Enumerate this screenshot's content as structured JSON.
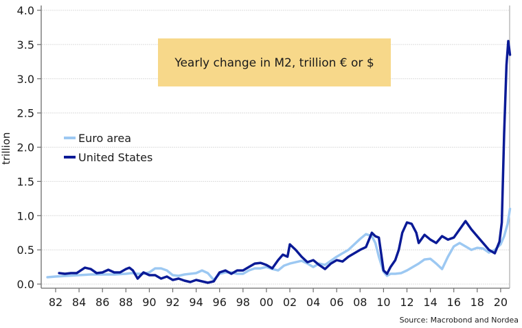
{
  "chart_data": {
    "type": "line",
    "title": "Yearly change in M2, trillion € or $",
    "xlabel": "",
    "ylabel": "trillion",
    "source": "Source: Macrobond and Nordea",
    "xlim": [
      1981.3,
      2020.9
    ],
    "ylim": [
      0,
      4.0
    ],
    "yticks": [
      0.0,
      0.5,
      1.0,
      1.5,
      2.0,
      2.5,
      3.0,
      3.5,
      4.0
    ],
    "ytick_labels": [
      "0.0",
      "0.5",
      "1.0",
      "1.5",
      "2.0",
      "2.5",
      "3.0",
      "3.5",
      "4.0"
    ],
    "xticks": [
      1982,
      1984,
      1986,
      1988,
      1990,
      1992,
      1994,
      1996,
      1998,
      2000,
      2002,
      2004,
      2006,
      2008,
      2010,
      2012,
      2014,
      2016,
      2018,
      2020
    ],
    "xtick_labels": [
      "82",
      "84",
      "86",
      "88",
      "90",
      "92",
      "94",
      "96",
      "98",
      "00",
      "02",
      "04",
      "06",
      "08",
      "10",
      "12",
      "14",
      "16",
      "18",
      "20"
    ],
    "grid": true,
    "legend": "middle-left",
    "series": [
      {
        "name": "Euro area",
        "color": "#9CC8F2",
        "x": [
          1981.3,
          1982,
          1983,
          1984,
          1985,
          1986,
          1987,
          1988,
          1988.5,
          1989,
          1989.5,
          1990,
          1990.5,
          1991,
          1991.5,
          1992,
          1992.5,
          1993,
          1993.5,
          1994,
          1994.5,
          1995,
          1995.5,
          1996,
          1996.5,
          1997,
          1997.5,
          1998,
          1998.5,
          1999,
          1999.5,
          2000,
          2000.5,
          2001,
          2001.5,
          2002,
          2002.5,
          2003,
          2003.5,
          2004,
          2004.5,
          2005,
          2005.5,
          2006,
          2006.5,
          2007,
          2007.5,
          2008,
          2008.5,
          2009,
          2009.3,
          2009.6,
          2010,
          2010.3,
          2010.6,
          2011,
          2011.5,
          2012,
          2012.5,
          2013,
          2013.5,
          2014,
          2014.5,
          2015,
          2015.5,
          2016,
          2016.5,
          2017,
          2017.5,
          2018,
          2018.5,
          2019,
          2019.5,
          2020,
          2020.3,
          2020.6,
          2020.8
        ],
        "values": [
          0.1,
          0.11,
          0.12,
          0.13,
          0.14,
          0.14,
          0.14,
          0.15,
          0.16,
          0.15,
          0.15,
          0.17,
          0.23,
          0.23,
          0.2,
          0.13,
          0.12,
          0.14,
          0.15,
          0.16,
          0.2,
          0.16,
          0.06,
          0.15,
          0.17,
          0.17,
          0.15,
          0.15,
          0.2,
          0.23,
          0.23,
          0.25,
          0.22,
          0.2,
          0.27,
          0.3,
          0.32,
          0.34,
          0.3,
          0.25,
          0.3,
          0.28,
          0.34,
          0.4,
          0.45,
          0.5,
          0.58,
          0.66,
          0.73,
          0.7,
          0.6,
          0.4,
          0.18,
          0.12,
          0.15,
          0.15,
          0.16,
          0.2,
          0.25,
          0.3,
          0.36,
          0.37,
          0.3,
          0.22,
          0.4,
          0.55,
          0.6,
          0.55,
          0.5,
          0.53,
          0.52,
          0.46,
          0.5,
          0.58,
          0.7,
          0.88,
          1.1
        ]
      },
      {
        "name": "United States",
        "color": "#0A1A96",
        "x": [
          1982.3,
          1982.8,
          1983.3,
          1983.8,
          1984.5,
          1985,
          1985.5,
          1986,
          1986.5,
          1987,
          1987.5,
          1988,
          1988.3,
          1988.6,
          1989,
          1989.5,
          1990,
          1990.5,
          1991,
          1991.5,
          1992,
          1992.5,
          1993,
          1993.5,
          1994,
          1994.5,
          1995,
          1995.5,
          1996,
          1996.5,
          1997,
          1997.5,
          1998,
          1998.5,
          1999,
          1999.5,
          2000,
          2000.5,
          2001,
          2001.4,
          2001.8,
          2002,
          2002.5,
          2003,
          2003.5,
          2004,
          2004.5,
          2005,
          2005.5,
          2006,
          2006.5,
          2007,
          2007.5,
          2008,
          2008.5,
          2009,
          2009.3,
          2009.6,
          2010,
          2010.3,
          2010.6,
          2011,
          2011.3,
          2011.6,
          2012,
          2012.4,
          2012.8,
          2013,
          2013.5,
          2014,
          2014.5,
          2015,
          2015.5,
          2016,
          2016.5,
          2017,
          2017.5,
          2018,
          2018.5,
          2019,
          2019.5,
          2019.9,
          2020.1,
          2020.3,
          2020.5,
          2020.65,
          2020.8
        ],
        "values": [
          0.16,
          0.15,
          0.16,
          0.16,
          0.24,
          0.22,
          0.16,
          0.17,
          0.21,
          0.17,
          0.17,
          0.22,
          0.24,
          0.2,
          0.08,
          0.17,
          0.13,
          0.13,
          0.08,
          0.11,
          0.06,
          0.08,
          0.05,
          0.03,
          0.06,
          0.04,
          0.02,
          0.04,
          0.17,
          0.2,
          0.15,
          0.2,
          0.2,
          0.25,
          0.3,
          0.31,
          0.28,
          0.23,
          0.35,
          0.43,
          0.4,
          0.58,
          0.5,
          0.4,
          0.32,
          0.35,
          0.28,
          0.22,
          0.3,
          0.35,
          0.33,
          0.4,
          0.45,
          0.5,
          0.54,
          0.75,
          0.7,
          0.68,
          0.2,
          0.15,
          0.25,
          0.35,
          0.5,
          0.75,
          0.9,
          0.88,
          0.75,
          0.6,
          0.72,
          0.65,
          0.6,
          0.7,
          0.65,
          0.68,
          0.8,
          0.92,
          0.8,
          0.7,
          0.6,
          0.5,
          0.45,
          0.62,
          0.9,
          2.2,
          3.2,
          3.55,
          3.35
        ]
      }
    ]
  }
}
